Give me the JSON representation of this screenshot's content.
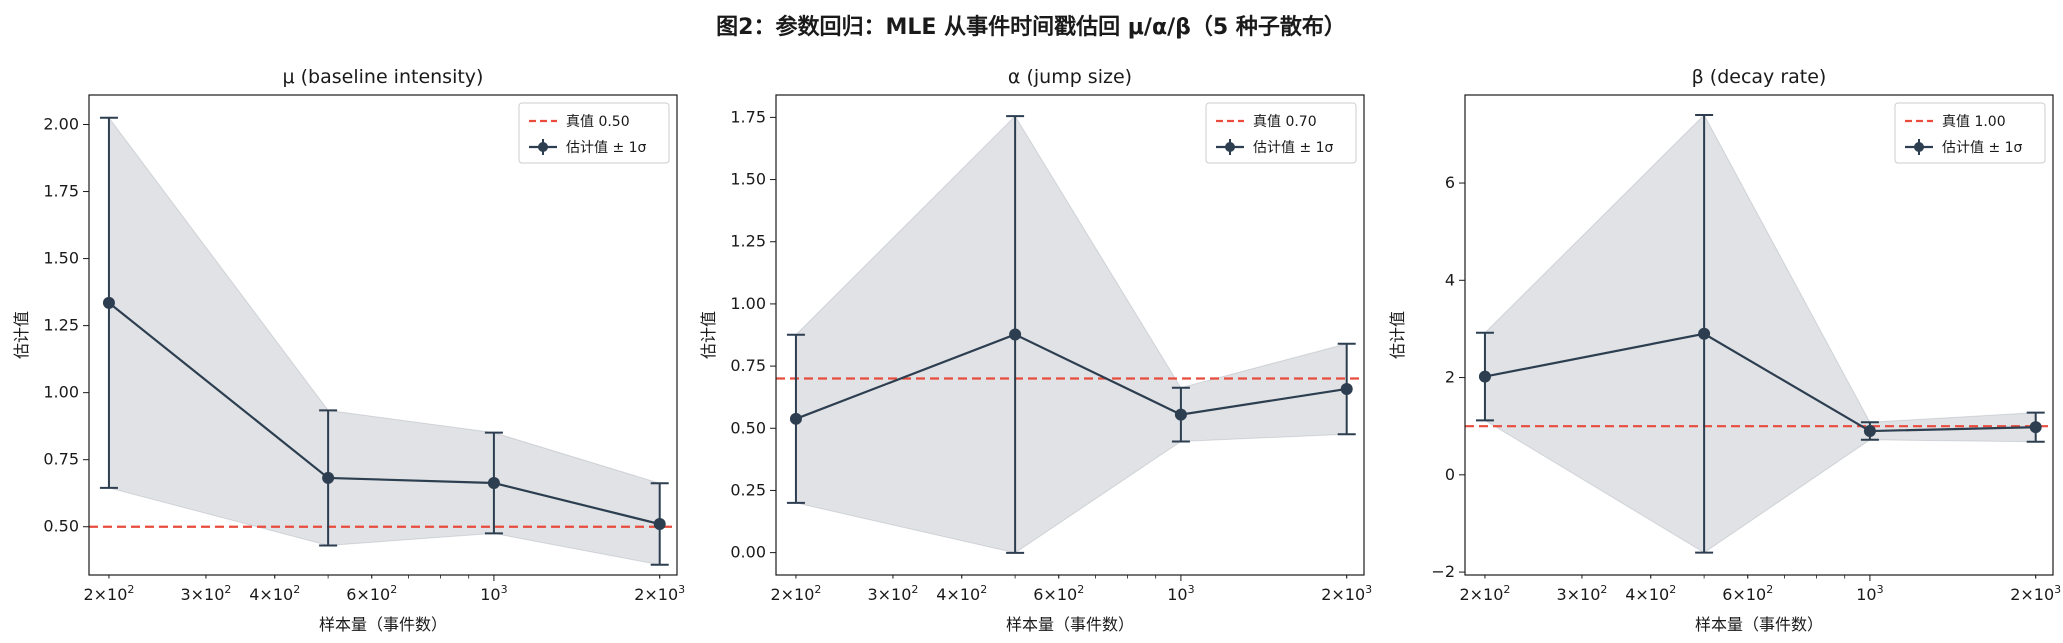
{
  "suptitle": "图2：参数回归：MLE 从事件时间戳估回 μ/α/β（5 种子散布）",
  "colors": {
    "estimate": "#2c3e50",
    "truth": "#e74c3c",
    "band": "#2c3e50"
  },
  "chart_data": [
    {
      "type": "line",
      "title": "μ (baseline intensity)",
      "xlabel": "样本量（事件数）",
      "ylabel": "估计值",
      "x_scale": "log",
      "x_ticks": [
        {
          "value": 200,
          "mant": "2",
          "base": "×10",
          "exp": "2"
        },
        {
          "value": 300,
          "mant": "3",
          "base": "×10",
          "exp": "2"
        },
        {
          "value": 400,
          "mant": "4",
          "base": "×10",
          "exp": "2"
        },
        {
          "value": 600,
          "mant": "6",
          "base": "×10",
          "exp": "2"
        },
        {
          "value": 1000,
          "mant": "",
          "base": "10",
          "exp": "3"
        },
        {
          "value": 2000,
          "mant": "2",
          "base": "×10",
          "exp": "3"
        }
      ],
      "y_ticks": [
        "0.50",
        "0.75",
        "1.00",
        "1.25",
        "1.50",
        "1.75",
        "2.00"
      ],
      "xlim": [
        184,
        2150
      ],
      "ylim": [
        0.32,
        2.11
      ],
      "x": [
        200,
        500,
        1000,
        2000
      ],
      "values": [
        1.335,
        0.682,
        0.663,
        0.51
      ],
      "std": [
        0.69,
        0.252,
        0.188,
        0.152
      ],
      "truth": 0.5,
      "legend": {
        "position": "top-right",
        "truth_label": "真值 0.50",
        "estimate_label": "估计值 ± 1σ"
      }
    },
    {
      "type": "line",
      "title": "α (jump size)",
      "xlabel": "样本量（事件数）",
      "ylabel": "估计值",
      "x_scale": "log",
      "x_ticks": [
        {
          "value": 200,
          "mant": "2",
          "base": "×10",
          "exp": "2"
        },
        {
          "value": 300,
          "mant": "3",
          "base": "×10",
          "exp": "2"
        },
        {
          "value": 400,
          "mant": "4",
          "base": "×10",
          "exp": "2"
        },
        {
          "value": 600,
          "mant": "6",
          "base": "×10",
          "exp": "2"
        },
        {
          "value": 1000,
          "mant": "",
          "base": "10",
          "exp": "3"
        },
        {
          "value": 2000,
          "mant": "2",
          "base": "×10",
          "exp": "3"
        }
      ],
      "y_ticks": [
        "0.00",
        "0.25",
        "0.50",
        "0.75",
        "1.00",
        "1.25",
        "1.50",
        "1.75"
      ],
      "xlim": [
        184,
        2150
      ],
      "ylim": [
        -0.09,
        1.84
      ],
      "x": [
        200,
        500,
        1000,
        2000
      ],
      "values": [
        0.538,
        0.877,
        0.555,
        0.658
      ],
      "std": [
        0.338,
        0.878,
        0.108,
        0.182
      ],
      "truth": 0.7,
      "legend": {
        "position": "top-right",
        "truth_label": "真值 0.70",
        "estimate_label": "估计值 ± 1σ"
      }
    },
    {
      "type": "line",
      "title": "β (decay rate)",
      "xlabel": "样本量（事件数）",
      "ylabel": "估计值",
      "x_scale": "log",
      "x_ticks": [
        {
          "value": 200,
          "mant": "2",
          "base": "×10",
          "exp": "2"
        },
        {
          "value": 300,
          "mant": "3",
          "base": "×10",
          "exp": "2"
        },
        {
          "value": 400,
          "mant": "4",
          "base": "×10",
          "exp": "2"
        },
        {
          "value": 600,
          "mant": "6",
          "base": "×10",
          "exp": "2"
        },
        {
          "value": 1000,
          "mant": "",
          "base": "10",
          "exp": "3"
        },
        {
          "value": 2000,
          "mant": "2",
          "base": "×10",
          "exp": "3"
        }
      ],
      "y_ticks": [
        "−2",
        "0",
        "2",
        "4",
        "6"
      ],
      "xlim": [
        184,
        2150
      ],
      "ylim": [
        -2.06,
        7.81
      ],
      "x": [
        200,
        500,
        1000,
        2000
      ],
      "values": [
        2.02,
        2.9,
        0.9,
        0.98
      ],
      "std": [
        0.9,
        4.5,
        0.18,
        0.3
      ],
      "truth": 1.0,
      "legend": {
        "position": "top-right",
        "truth_label": "真值 1.00",
        "estimate_label": "估计值 ± 1σ"
      }
    }
  ]
}
